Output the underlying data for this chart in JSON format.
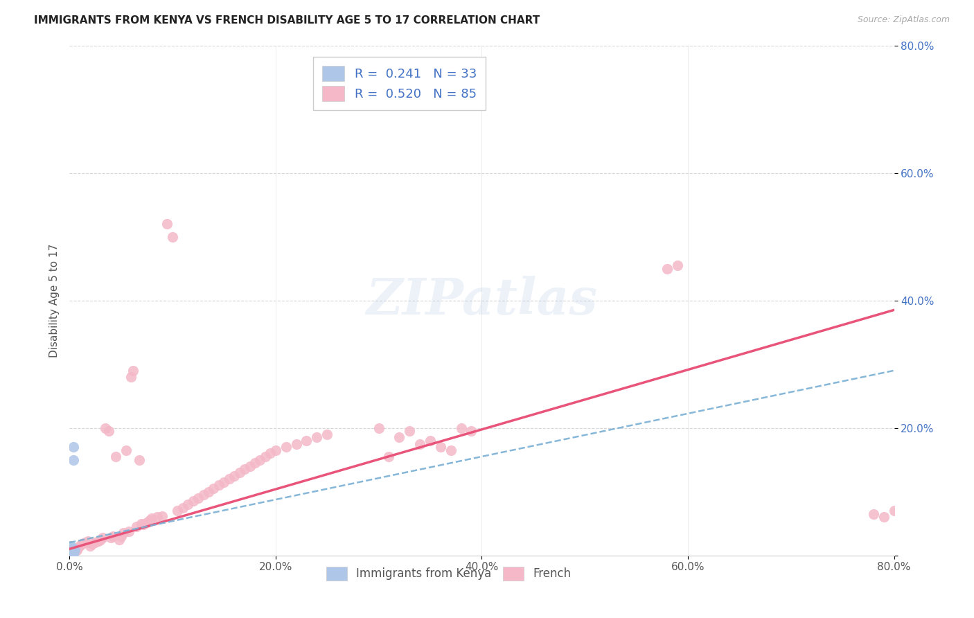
{
  "title": "IMMIGRANTS FROM KENYA VS FRENCH DISABILITY AGE 5 TO 17 CORRELATION CHART",
  "source": "Source: ZipAtlas.com",
  "ylabel": "Disability Age 5 to 17",
  "xlim": [
    0.0,
    0.8
  ],
  "ylim": [
    0.0,
    0.8
  ],
  "xticks": [
    0.0,
    0.2,
    0.4,
    0.6,
    0.8
  ],
  "yticks": [
    0.0,
    0.2,
    0.4,
    0.6,
    0.8
  ],
  "xtick_labels": [
    "0.0%",
    "20.0%",
    "40.0%",
    "60.0%",
    "80.0%"
  ],
  "ytick_labels": [
    "",
    "20.0%",
    "40.0%",
    "60.0%",
    "80.0%"
  ],
  "kenya_color": "#aec6e8",
  "french_color": "#f4b8c8",
  "kenya_line_color": "#7ab0d4",
  "french_line_color": "#e8547a",
  "background_color": "#ffffff",
  "grid_color": "#cccccc",
  "kenya_line_x": [
    0.0,
    0.8
  ],
  "kenya_line_y": [
    0.02,
    0.29
  ],
  "french_line_x": [
    0.0,
    0.8
  ],
  "french_line_y": [
    0.01,
    0.385
  ],
  "kenya_scatter": [
    [
      0.001,
      0.005
    ],
    [
      0.002,
      0.008
    ],
    [
      0.001,
      0.003
    ],
    [
      0.003,
      0.006
    ],
    [
      0.001,
      0.01
    ],
    [
      0.002,
      0.004
    ],
    [
      0.003,
      0.007
    ],
    [
      0.001,
      0.015
    ],
    [
      0.002,
      0.005
    ],
    [
      0.003,
      0.012
    ],
    [
      0.002,
      0.003
    ],
    [
      0.004,
      0.005
    ],
    [
      0.003,
      0.008
    ],
    [
      0.001,
      0.002
    ],
    [
      0.002,
      0.006
    ],
    [
      0.001,
      0.003
    ],
    [
      0.002,
      0.002
    ],
    [
      0.003,
      0.004
    ],
    [
      0.001,
      0.001
    ],
    [
      0.004,
      0.003
    ],
    [
      0.003,
      0.005
    ],
    [
      0.002,
      0.007
    ],
    [
      0.001,
      0.004
    ],
    [
      0.003,
      0.009
    ],
    [
      0.004,
      0.006
    ],
    [
      0.002,
      0.011
    ],
    [
      0.005,
      0.008
    ],
    [
      0.003,
      0.003
    ],
    [
      0.004,
      0.17
    ],
    [
      0.004,
      0.15
    ],
    [
      0.002,
      0.01
    ],
    [
      0.003,
      0.006
    ],
    [
      0.001,
      0.003
    ]
  ],
  "french_scatter": [
    [
      0.001,
      0.005
    ],
    [
      0.002,
      0.008
    ],
    [
      0.003,
      0.006
    ],
    [
      0.004,
      0.005
    ],
    [
      0.005,
      0.01
    ],
    [
      0.006,
      0.009
    ],
    [
      0.007,
      0.008
    ],
    [
      0.008,
      0.012
    ],
    [
      0.01,
      0.015
    ],
    [
      0.012,
      0.018
    ],
    [
      0.015,
      0.02
    ],
    [
      0.018,
      0.022
    ],
    [
      0.02,
      0.015
    ],
    [
      0.022,
      0.018
    ],
    [
      0.025,
      0.02
    ],
    [
      0.028,
      0.022
    ],
    [
      0.03,
      0.025
    ],
    [
      0.032,
      0.028
    ],
    [
      0.035,
      0.2
    ],
    [
      0.038,
      0.195
    ],
    [
      0.04,
      0.028
    ],
    [
      0.042,
      0.03
    ],
    [
      0.045,
      0.155
    ],
    [
      0.048,
      0.025
    ],
    [
      0.05,
      0.03
    ],
    [
      0.052,
      0.035
    ],
    [
      0.055,
      0.165
    ],
    [
      0.058,
      0.038
    ],
    [
      0.06,
      0.28
    ],
    [
      0.062,
      0.29
    ],
    [
      0.065,
      0.045
    ],
    [
      0.068,
      0.15
    ],
    [
      0.07,
      0.05
    ],
    [
      0.072,
      0.048
    ],
    [
      0.075,
      0.052
    ],
    [
      0.078,
      0.055
    ],
    [
      0.08,
      0.058
    ],
    [
      0.085,
      0.06
    ],
    [
      0.09,
      0.062
    ],
    [
      0.095,
      0.52
    ],
    [
      0.1,
      0.5
    ],
    [
      0.105,
      0.07
    ],
    [
      0.11,
      0.075
    ],
    [
      0.115,
      0.08
    ],
    [
      0.12,
      0.085
    ],
    [
      0.125,
      0.09
    ],
    [
      0.13,
      0.095
    ],
    [
      0.135,
      0.1
    ],
    [
      0.14,
      0.105
    ],
    [
      0.145,
      0.11
    ],
    [
      0.15,
      0.115
    ],
    [
      0.155,
      0.12
    ],
    [
      0.16,
      0.125
    ],
    [
      0.165,
      0.13
    ],
    [
      0.17,
      0.135
    ],
    [
      0.175,
      0.14
    ],
    [
      0.18,
      0.145
    ],
    [
      0.185,
      0.15
    ],
    [
      0.19,
      0.155
    ],
    [
      0.195,
      0.16
    ],
    [
      0.2,
      0.165
    ],
    [
      0.21,
      0.17
    ],
    [
      0.22,
      0.175
    ],
    [
      0.23,
      0.18
    ],
    [
      0.24,
      0.185
    ],
    [
      0.25,
      0.19
    ],
    [
      0.3,
      0.2
    ],
    [
      0.31,
      0.155
    ],
    [
      0.32,
      0.185
    ],
    [
      0.33,
      0.195
    ],
    [
      0.34,
      0.175
    ],
    [
      0.35,
      0.18
    ],
    [
      0.36,
      0.17
    ],
    [
      0.37,
      0.165
    ],
    [
      0.38,
      0.2
    ],
    [
      0.39,
      0.195
    ],
    [
      0.58,
      0.45
    ],
    [
      0.59,
      0.455
    ],
    [
      0.78,
      0.065
    ],
    [
      0.79,
      0.06
    ],
    [
      0.8,
      0.07
    ]
  ]
}
